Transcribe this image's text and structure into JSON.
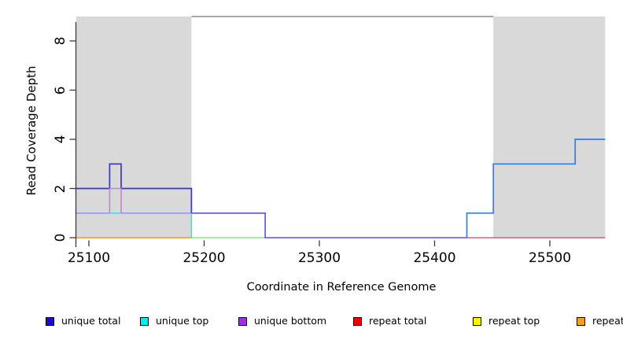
{
  "figure": {
    "x_axis": {
      "label": "Coordinate in Reference Genome",
      "ticks": [
        "25100",
        "25200",
        "25300",
        "25400",
        "25500"
      ],
      "tick_values": [
        25100,
        25200,
        25300,
        25400,
        25500
      ]
    },
    "y_axis": {
      "label": "Read Coverage Depth",
      "ticks": [
        "0",
        "2",
        "4",
        "6",
        "8"
      ],
      "tick_values": [
        0,
        2,
        4,
        6,
        8
      ]
    }
  },
  "legend": {
    "items": [
      {
        "label": "unique total",
        "color": "#1212CC"
      },
      {
        "label": "unique top",
        "color": "#00EEEE"
      },
      {
        "label": "unique bottom",
        "color": "#9B30E0"
      },
      {
        "label": "repeat total",
        "color": "#EE0000"
      },
      {
        "label": "repeat top",
        "color": "#F8F800"
      },
      {
        "label": "repeat bottom",
        "color": "#F7A11C"
      }
    ]
  },
  "chart_data": {
    "type": "line",
    "subtype": "step-coverage",
    "title": "",
    "xlabel": "Coordinate in Reference Genome",
    "ylabel": "Read Coverage Depth",
    "xlim": [
      25089,
      25548
    ],
    "ylim": [
      0,
      9
    ],
    "x_ticks": [
      25100,
      25200,
      25300,
      25400,
      25500
    ],
    "y_ticks": [
      0,
      2,
      4,
      6,
      8
    ],
    "grid": false,
    "legend_position": "bottom",
    "shaded_regions": [
      {
        "from": 25089,
        "to": 25189,
        "color": "#D9D9D9"
      },
      {
        "from": 25451,
        "to": 25548,
        "color": "#D9D9D9"
      }
    ],
    "top_boundary_line": {
      "from": 25189,
      "to": 25451,
      "color": "#8C8C8C"
    },
    "series": [
      {
        "name": "unique total",
        "color": "#1212CC",
        "steps": [
          {
            "from": 25089,
            "to": 25118,
            "depth": 2
          },
          {
            "from": 25118,
            "to": 25128,
            "depth": 3
          },
          {
            "from": 25128,
            "to": 25189,
            "depth": 2
          },
          {
            "from": 25189,
            "to": 25253,
            "depth": 1
          },
          {
            "from": 25253,
            "to": 25428,
            "depth": 0
          },
          {
            "from": 25428,
            "to": 25451,
            "depth": 1
          },
          {
            "from": 25451,
            "to": 25522,
            "depth": 3
          },
          {
            "from": 25522,
            "to": 25548,
            "depth": 4
          }
        ]
      },
      {
        "name": "unique top",
        "color": "#00EEEE",
        "steps": [
          {
            "from": 25089,
            "to": 25189,
            "depth": 1
          },
          {
            "from": 25189,
            "to": 25548,
            "depth": 0
          }
        ]
      },
      {
        "name": "unique bottom",
        "color": "#9B30E0",
        "steps": [
          {
            "from": 25089,
            "to": 25118,
            "depth": 1
          },
          {
            "from": 25118,
            "to": 25128,
            "depth": 2
          },
          {
            "from": 25128,
            "to": 25253,
            "depth": 1
          },
          {
            "from": 25253,
            "to": 25548,
            "depth": 0
          }
        ]
      },
      {
        "name": "repeat total",
        "color": "#EE0000",
        "steps": [
          {
            "from": 25089,
            "to": 25548,
            "depth": 0
          }
        ]
      },
      {
        "name": "repeat top",
        "color": "#F8F800",
        "steps": [
          {
            "from": 25089,
            "to": 25548,
            "depth": 0
          }
        ]
      },
      {
        "name": "repeat bottom",
        "color": "#F7A11C",
        "steps": [
          {
            "from": 25089,
            "to": 25548,
            "depth": 0
          }
        ]
      }
    ],
    "drawn_polylines": [
      {
        "id": "zero-orange",
        "color": "#FF9C1C",
        "width": 1.6,
        "points": [
          [
            25089,
            0
          ],
          [
            25189,
            0
          ]
        ]
      },
      {
        "id": "zero-green",
        "color": "#8FE48F",
        "width": 1.5,
        "points": [
          [
            25189,
            0
          ],
          [
            25253,
            0
          ]
        ]
      },
      {
        "id": "zero-red",
        "color": "#E4607A",
        "width": 1.5,
        "points": [
          [
            25428,
            0
          ],
          [
            25548,
            0
          ]
        ]
      },
      {
        "id": "depth1-periwinkle-a",
        "color": "#9797EB",
        "width": 1.6,
        "points": [
          [
            25089,
            1
          ],
          [
            25118,
            1
          ]
        ]
      },
      {
        "id": "depth1-periwinkle-b",
        "color": "#9797EB",
        "width": 1.6,
        "points": [
          [
            25128,
            1
          ],
          [
            25189,
            1
          ]
        ]
      },
      {
        "id": "cyan-reveal",
        "color": "#2FE0E8",
        "width": 1.5,
        "points": [
          [
            25118,
            1
          ],
          [
            25128,
            1
          ]
        ]
      },
      {
        "id": "violet-mid",
        "color": "#5B50E8",
        "width": 1.6,
        "points": [
          [
            25189,
            1
          ],
          [
            25253,
            1
          ],
          [
            25253,
            0
          ],
          [
            25428,
            0
          ]
        ]
      },
      {
        "id": "unique-total-left",
        "color": "#3634D9",
        "width": 1.7,
        "points": [
          [
            25089,
            2
          ],
          [
            25118,
            2
          ],
          [
            25118,
            3
          ],
          [
            25128,
            3
          ],
          [
            25128,
            2
          ],
          [
            25189,
            2
          ],
          [
            25189,
            1
          ]
        ]
      },
      {
        "id": "bump-lavender",
        "color": "#C77BE5",
        "width": 1.5,
        "points": [
          [
            25118,
            1
          ],
          [
            25118,
            2
          ],
          [
            25128,
            2
          ],
          [
            25128,
            1
          ]
        ]
      },
      {
        "id": "cyan-drop",
        "color": "#2FE0E8",
        "width": 1.5,
        "points": [
          [
            25189,
            1
          ],
          [
            25189,
            0
          ]
        ]
      },
      {
        "id": "azure-right",
        "color": "#2E7FE8",
        "width": 1.7,
        "points": [
          [
            25428,
            0
          ],
          [
            25428,
            1
          ],
          [
            25451,
            1
          ],
          [
            25451,
            3
          ],
          [
            25522,
            3
          ],
          [
            25522,
            4
          ],
          [
            25548,
            4
          ]
        ]
      }
    ]
  }
}
